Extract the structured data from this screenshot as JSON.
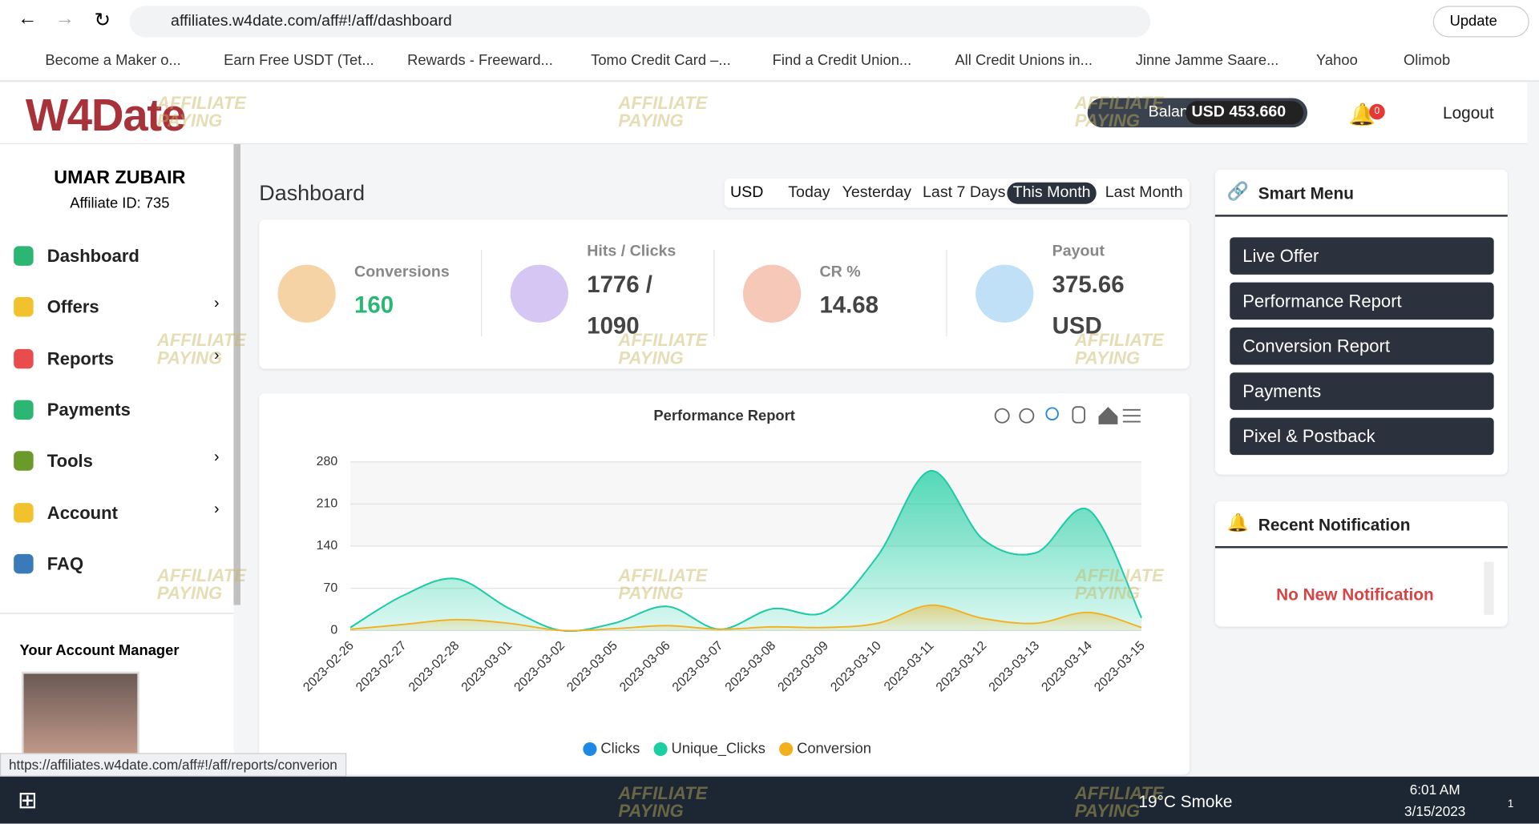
{
  "browser": {
    "url": "affiliates.w4date.com/aff#!/aff/dashboard",
    "update": "Update",
    "bookmarks": [
      "Become a Maker o...",
      "Earn Free USDT (Tet...",
      "Rewards - Freeward...",
      "Tomo Credit Card –...",
      "Find a Credit Union...",
      "All Credit Unions in...",
      "Jinne Jamme Saare...",
      "Yahoo",
      "Olimob"
    ]
  },
  "watermark": "AFFILIATE PAYING",
  "header": {
    "logo": "W4Date",
    "balance_label": "Balance",
    "balance_value": "USD 453.660",
    "notifications": "0",
    "logout": "Logout"
  },
  "sidebar": {
    "user": "UMAR ZUBAIR",
    "affiliate_id": "Affiliate ID: 735",
    "nav": [
      "Dashboard",
      "Offers",
      "Reports",
      "Payments",
      "Tools",
      "Account",
      "FAQ"
    ],
    "account_manager": "Your Account Manager"
  },
  "dashboard": {
    "title": "Dashboard",
    "currency": "USD",
    "ranges": [
      "Today",
      "Yesterday",
      "Last 7 Days",
      "This Month",
      "Last Month"
    ],
    "active_range": "This Month",
    "stats": [
      {
        "label": "Conversions",
        "value": "160"
      },
      {
        "label": "Hits / Clicks",
        "value": "1776 / 1090"
      },
      {
        "label": "CR %",
        "value": "14.68"
      },
      {
        "label": "Payout",
        "value": "375.66 USD"
      }
    ]
  },
  "chart_data": {
    "type": "line",
    "title": "Performance Report",
    "categories": [
      "2023-02-26",
      "2023-02-27",
      "2023-02-28",
      "2023-03-01",
      "2023-03-02",
      "2023-03-05",
      "2023-03-06",
      "2023-03-07",
      "2023-03-08",
      "2023-03-09",
      "2023-03-10",
      "2023-03-11",
      "2023-03-12",
      "2023-03-13",
      "2023-03-14",
      "2023-03-15"
    ],
    "series": [
      {
        "name": "Clicks",
        "color": "#1e88e5",
        "values": [
          5,
          58,
          86,
          37,
          0,
          12,
          40,
          2,
          36,
          31,
          124,
          265,
          151,
          129,
          200,
          21
        ]
      },
      {
        "name": "Unique_Clicks",
        "color": "#1ccfa3",
        "values": [
          5,
          58,
          86,
          37,
          0,
          12,
          40,
          2,
          36,
          31,
          124,
          265,
          151,
          129,
          200,
          21
        ]
      },
      {
        "name": "Conversion",
        "color": "#f2b01e",
        "values": [
          2,
          10,
          18,
          12,
          0,
          3,
          8,
          2,
          6,
          5,
          12,
          42,
          20,
          12,
          30,
          5
        ]
      }
    ],
    "ylim": [
      0,
      280
    ],
    "yticks": [
      0,
      70,
      140,
      210,
      280
    ],
    "grid": true,
    "legend": "bottom"
  },
  "smart_menu": {
    "title": "Smart Menu",
    "items": [
      "Live Offer",
      "Performance Report",
      "Conversion Report",
      "Payments",
      "Pixel & Postback"
    ]
  },
  "recent_notification": {
    "title": "Recent Notification",
    "empty": "No New Notification"
  },
  "status_url": "https://affiliates.w4date.com/aff#!/aff/reports/converion",
  "taskbar": {
    "weather": "19°C Smoke",
    "time": "6:01 AM",
    "date": "3/15/2023",
    "badge": "1"
  }
}
